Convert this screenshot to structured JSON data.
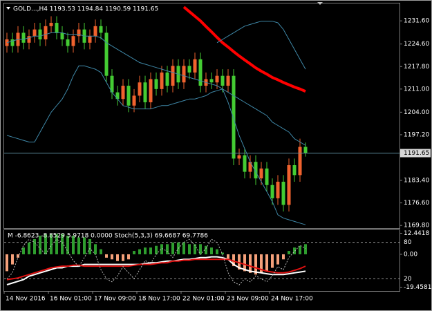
{
  "chart_data": [
    {
      "type": "candlestick",
      "title": "GOLD...,H4  1193.53 1194.84 1190.59 1191.65",
      "x_labels": [
        "14 Nov 2016",
        "16 Nov 01:00",
        "17 Nov 09:00",
        "18 Nov 17:00",
        "22 Nov 01:00",
        "23 Nov 09:00",
        "24 Nov 17:00"
      ],
      "open": [
        1224,
        1226,
        1224,
        1228,
        1225,
        1227,
        1229,
        1226,
        1230,
        1231,
        1228,
        1226,
        1224,
        1227,
        1229,
        1225,
        1227,
        1230,
        1228,
        1215,
        1210,
        1208,
        1212,
        1206,
        1209,
        1213,
        1207,
        1214,
        1211,
        1216,
        1212,
        1218,
        1213,
        1218,
        1216,
        1220,
        1212,
        1214,
        1213,
        1215,
        1212,
        1215,
        1190,
        1191,
        1186,
        1189,
        1184,
        1187,
        1182,
        1178,
        1183,
        1176,
        1188,
        1185,
        1193.53
      ],
      "high": [
        1228,
        1228,
        1230,
        1230,
        1229,
        1231,
        1231,
        1232,
        1233,
        1233,
        1230,
        1228,
        1229,
        1231,
        1231,
        1229,
        1232,
        1232,
        1230,
        1217,
        1212,
        1214,
        1214,
        1211,
        1215,
        1215,
        1216,
        1216,
        1218,
        1218,
        1220,
        1220,
        1220,
        1220,
        1222,
        1222,
        1216,
        1216,
        1217,
        1217,
        1217,
        1217,
        1193,
        1193,
        1191,
        1191,
        1189,
        1189,
        1184,
        1185,
        1185,
        1190,
        1190,
        1196,
        1194.84
      ],
      "low": [
        1222,
        1222,
        1222,
        1223,
        1223,
        1225,
        1224,
        1224,
        1228,
        1226,
        1224,
        1222,
        1222,
        1225,
        1223,
        1223,
        1225,
        1226,
        1213,
        1208,
        1206,
        1206,
        1204,
        1204,
        1207,
        1205,
        1205,
        1209,
        1209,
        1210,
        1210,
        1211,
        1211,
        1214,
        1214,
        1210,
        1210,
        1211,
        1211,
        1210,
        1210,
        1188,
        1188,
        1184,
        1184,
        1182,
        1182,
        1180,
        1176,
        1176,
        1174,
        1174,
        1183,
        1183,
        1190.59
      ],
      "close": [
        1226,
        1224,
        1228,
        1225,
        1227,
        1229,
        1226,
        1230,
        1231,
        1228,
        1226,
        1224,
        1227,
        1229,
        1225,
        1227,
        1230,
        1228,
        1215,
        1210,
        1208,
        1212,
        1206,
        1209,
        1213,
        1207,
        1214,
        1211,
        1216,
        1212,
        1218,
        1213,
        1218,
        1216,
        1220,
        1212,
        1214,
        1213,
        1215,
        1212,
        1215,
        1190,
        1191,
        1186,
        1189,
        1184,
        1187,
        1182,
        1178,
        1183,
        1176,
        1188,
        1185,
        1193.53,
        1191.65
      ],
      "up_color": "#f0622e",
      "down_color": "#44cc33",
      "overlays": [
        {
          "color": "#ff0000",
          "width": 4,
          "values": [
            null,
            null,
            null,
            null,
            null,
            null,
            null,
            null,
            null,
            null,
            null,
            null,
            null,
            null,
            null,
            null,
            null,
            null,
            null,
            null,
            null,
            null,
            null,
            null,
            null,
            null,
            null,
            null,
            null,
            null,
            null,
            null,
            1235.8,
            1234.4,
            1233.0,
            1231.6,
            1229.9,
            1228.3,
            1226.6,
            1225.0,
            1223.7,
            1222.3,
            1221.0,
            1219.8,
            1218.6,
            1217.4,
            1216.4,
            1215.5,
            1214.5,
            1213.8,
            1213.0,
            1212.3,
            1211.6,
            1211.0,
            1210.3
          ]
        },
        {
          "color": "#3f88a8",
          "width": 1,
          "values": [
            1225,
            1225.5,
            1226,
            1226,
            1226.5,
            1227,
            1227,
            1227.5,
            1228,
            1228,
            1228,
            1227.5,
            1227.5,
            1227.5,
            1227,
            1227,
            1227,
            1226.5,
            1225,
            1224,
            1223,
            1222,
            1221,
            1220,
            1219,
            1218.5,
            1218,
            1217.5,
            1217,
            1216.5,
            1216,
            1215.5,
            1215,
            1214.5,
            1214,
            1213.5,
            1213,
            1212.5,
            1212,
            1211,
            1210,
            1209,
            1208,
            1207,
            1206,
            1205,
            1204,
            1203,
            1201,
            1200,
            1199,
            1198,
            1196,
            1195,
            1194
          ]
        },
        {
          "color": "#3f88a8",
          "width": 1,
          "values": [
            1197,
            1196.5,
            1196,
            1195.5,
            1195,
            1195,
            1198,
            1201,
            1204,
            1206,
            1208,
            1211,
            1215,
            1218,
            1218,
            1217.5,
            1217,
            1216,
            1213,
            1210,
            1208,
            1206,
            1205.5,
            1205,
            1205,
            1205,
            1205,
            1205.5,
            1206,
            1206,
            1206.5,
            1207,
            1207.5,
            1208,
            1208,
            1208.5,
            1209,
            1210,
            1210.5,
            1211,
            1207,
            1202,
            1197,
            1193,
            1189,
            1186,
            1183,
            1180,
            1177,
            1173,
            1172,
            1171.5,
            1171,
            1170.5,
            1170
          ]
        },
        {
          "color": "#3f88a8",
          "width": 1,
          "values": [
            null,
            null,
            null,
            null,
            null,
            null,
            null,
            null,
            null,
            null,
            null,
            null,
            null,
            null,
            null,
            null,
            null,
            null,
            null,
            null,
            null,
            null,
            null,
            null,
            null,
            null,
            null,
            null,
            null,
            null,
            null,
            null,
            null,
            null,
            null,
            null,
            null,
            null,
            1225,
            1226,
            1227,
            1228,
            1229,
            1230,
            1230.5,
            1231,
            1231.5,
            1231.5,
            1231.5,
            1231,
            1229,
            1226,
            1223,
            1220,
            1217
          ]
        }
      ],
      "last_price": 1191.65,
      "last_price_color": "#5f8ea0",
      "ylim": [
        1169.0,
        1237.9
      ],
      "yticks": [
        {
          "value": 1231.6,
          "label": "1231.60"
        },
        {
          "value": 1224.6,
          "label": "1224.60"
        },
        {
          "value": 1217.8,
          "label": "1217.80"
        },
        {
          "value": 1211.0,
          "label": "1211.00"
        },
        {
          "value": 1204.0,
          "label": "1204.00"
        },
        {
          "value": 1197.2,
          "label": "1197.20"
        },
        {
          "value": 1183.4,
          "label": "1183.40"
        },
        {
          "value": 1176.6,
          "label": "1176.60"
        },
        {
          "value": 1169.8,
          "label": "1169.80"
        }
      ]
    },
    {
      "type": "indicator",
      "title": "M -6.8623 -8.8529 5.9718 0.0000  Stoch(5,3,3) 69.6687 69.7786",
      "histogram": {
        "pos_color": "#2f9e2f",
        "neg_color": "#f4a07a",
        "values": [
          -10,
          -6,
          -2,
          4,
          7,
          9,
          11,
          12,
          12,
          12,
          12,
          11,
          11,
          10,
          10,
          9,
          6,
          3,
          -2,
          -3,
          -4,
          -4,
          -3,
          2,
          3,
          4,
          4,
          5,
          6,
          6,
          7,
          7,
          7,
          6,
          6,
          6,
          5,
          4,
          3,
          1,
          -3,
          -7,
          -9,
          -10,
          -11,
          -12,
          -11,
          -10,
          -8,
          -6,
          -3,
          2,
          4,
          5,
          6
        ]
      },
      "series": [
        {
          "color": "#ffffff",
          "width": 2,
          "values": [
            -18,
            -17,
            -16,
            -15,
            -13,
            -12,
            -11,
            -10,
            -9,
            -8,
            -8,
            -7,
            -7,
            -7,
            -6,
            -6,
            -6,
            -6,
            -6,
            -6,
            -6,
            -6,
            -6,
            -6,
            -6,
            -5.5,
            -5,
            -5,
            -4.5,
            -4,
            -4,
            -3.5,
            -3,
            -3,
            -2.5,
            -2,
            -2,
            -1.5,
            -1.5,
            -2,
            -3,
            -6,
            -8,
            -9,
            -10,
            -10.5,
            -11,
            -11.5,
            -12,
            -12,
            -12,
            -11.5,
            -11,
            -10.5,
            -10
          ]
        },
        {
          "color": "#e01010",
          "width": 2,
          "values": [
            -15,
            -14.5,
            -14,
            -13,
            -12,
            -11,
            -10,
            -9,
            -8,
            -7.5,
            -7,
            -7,
            -6.5,
            -6.5,
            -7,
            -7,
            -7,
            -7,
            -7,
            -7,
            -7,
            -7,
            -7,
            -6.5,
            -6,
            -6,
            -6,
            -5.5,
            -5,
            -5,
            -4,
            -4,
            -3.5,
            -3.5,
            -3,
            -3,
            -3,
            -3,
            -3,
            -3,
            -3,
            -4,
            -5,
            -6,
            -7,
            -8,
            -9,
            -10,
            -10.5,
            -11,
            -11,
            -10.5,
            -9.5,
            -8.5,
            -7
          ]
        },
        {
          "color": "#bbbbbb",
          "width": 1,
          "dashed": true,
          "axis": "y2",
          "values": [
            20,
            30,
            55,
            75,
            85,
            80,
            70,
            60,
            75,
            85,
            80,
            65,
            50,
            40,
            55,
            70,
            60,
            35,
            20,
            15,
            25,
            40,
            30,
            20,
            35,
            50,
            45,
            60,
            70,
            65,
            55,
            70,
            80,
            85,
            75,
            60,
            70,
            85,
            80,
            60,
            30,
            15,
            10,
            20,
            15,
            25,
            20,
            15,
            25,
            40,
            35,
            55,
            65,
            75,
            69.6687
          ]
        }
      ],
      "ylim": [
        -21.7,
        14.3
      ],
      "yticks": [
        12.4418,
        {
          "value": 0,
          "label": "0.00"
        },
        -19.4581
      ],
      "y2lim": [
        0,
        100
      ],
      "y2ticks": [
        80,
        20
      ]
    }
  ]
}
